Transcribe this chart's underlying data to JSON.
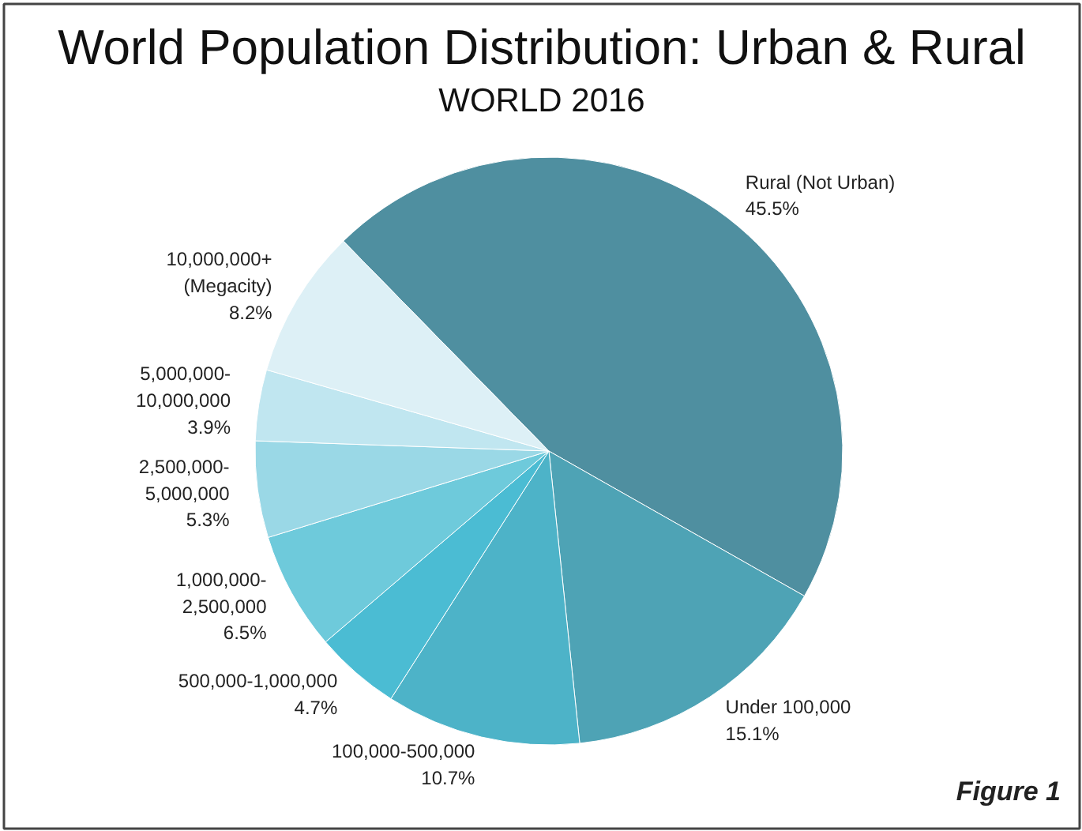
{
  "chart_data": {
    "type": "pie",
    "title": "World Population Distribution: Urban & Rural",
    "subtitle": "WORLD 2016",
    "categories": [
      "Rural (Not Urban)",
      "Under 100,000",
      "100,000-500,000",
      "500,000-1,000,000",
      "1,000,000-\n2,500,000",
      "2,500,000-\n5,000,000",
      "5,000,000-\n10,000,000",
      "10,000,000+\n(Megacity)"
    ],
    "values": [
      45.5,
      15.1,
      10.7,
      4.7,
      6.5,
      5.3,
      3.9,
      8.2
    ],
    "value_labels": [
      "45.5%",
      "15.1%",
      "10.7%",
      "4.7%",
      "6.5%",
      "5.3%",
      "3.9%",
      "8.2%"
    ],
    "colors": [
      "#4f8fa0",
      "#4ea3b5",
      "#4db3c8",
      "#4bbcd3",
      "#6ecadb",
      "#9ad8e6",
      "#c0e6f0",
      "#ddf0f6"
    ],
    "annotations": [
      "Figure 1"
    ]
  }
}
